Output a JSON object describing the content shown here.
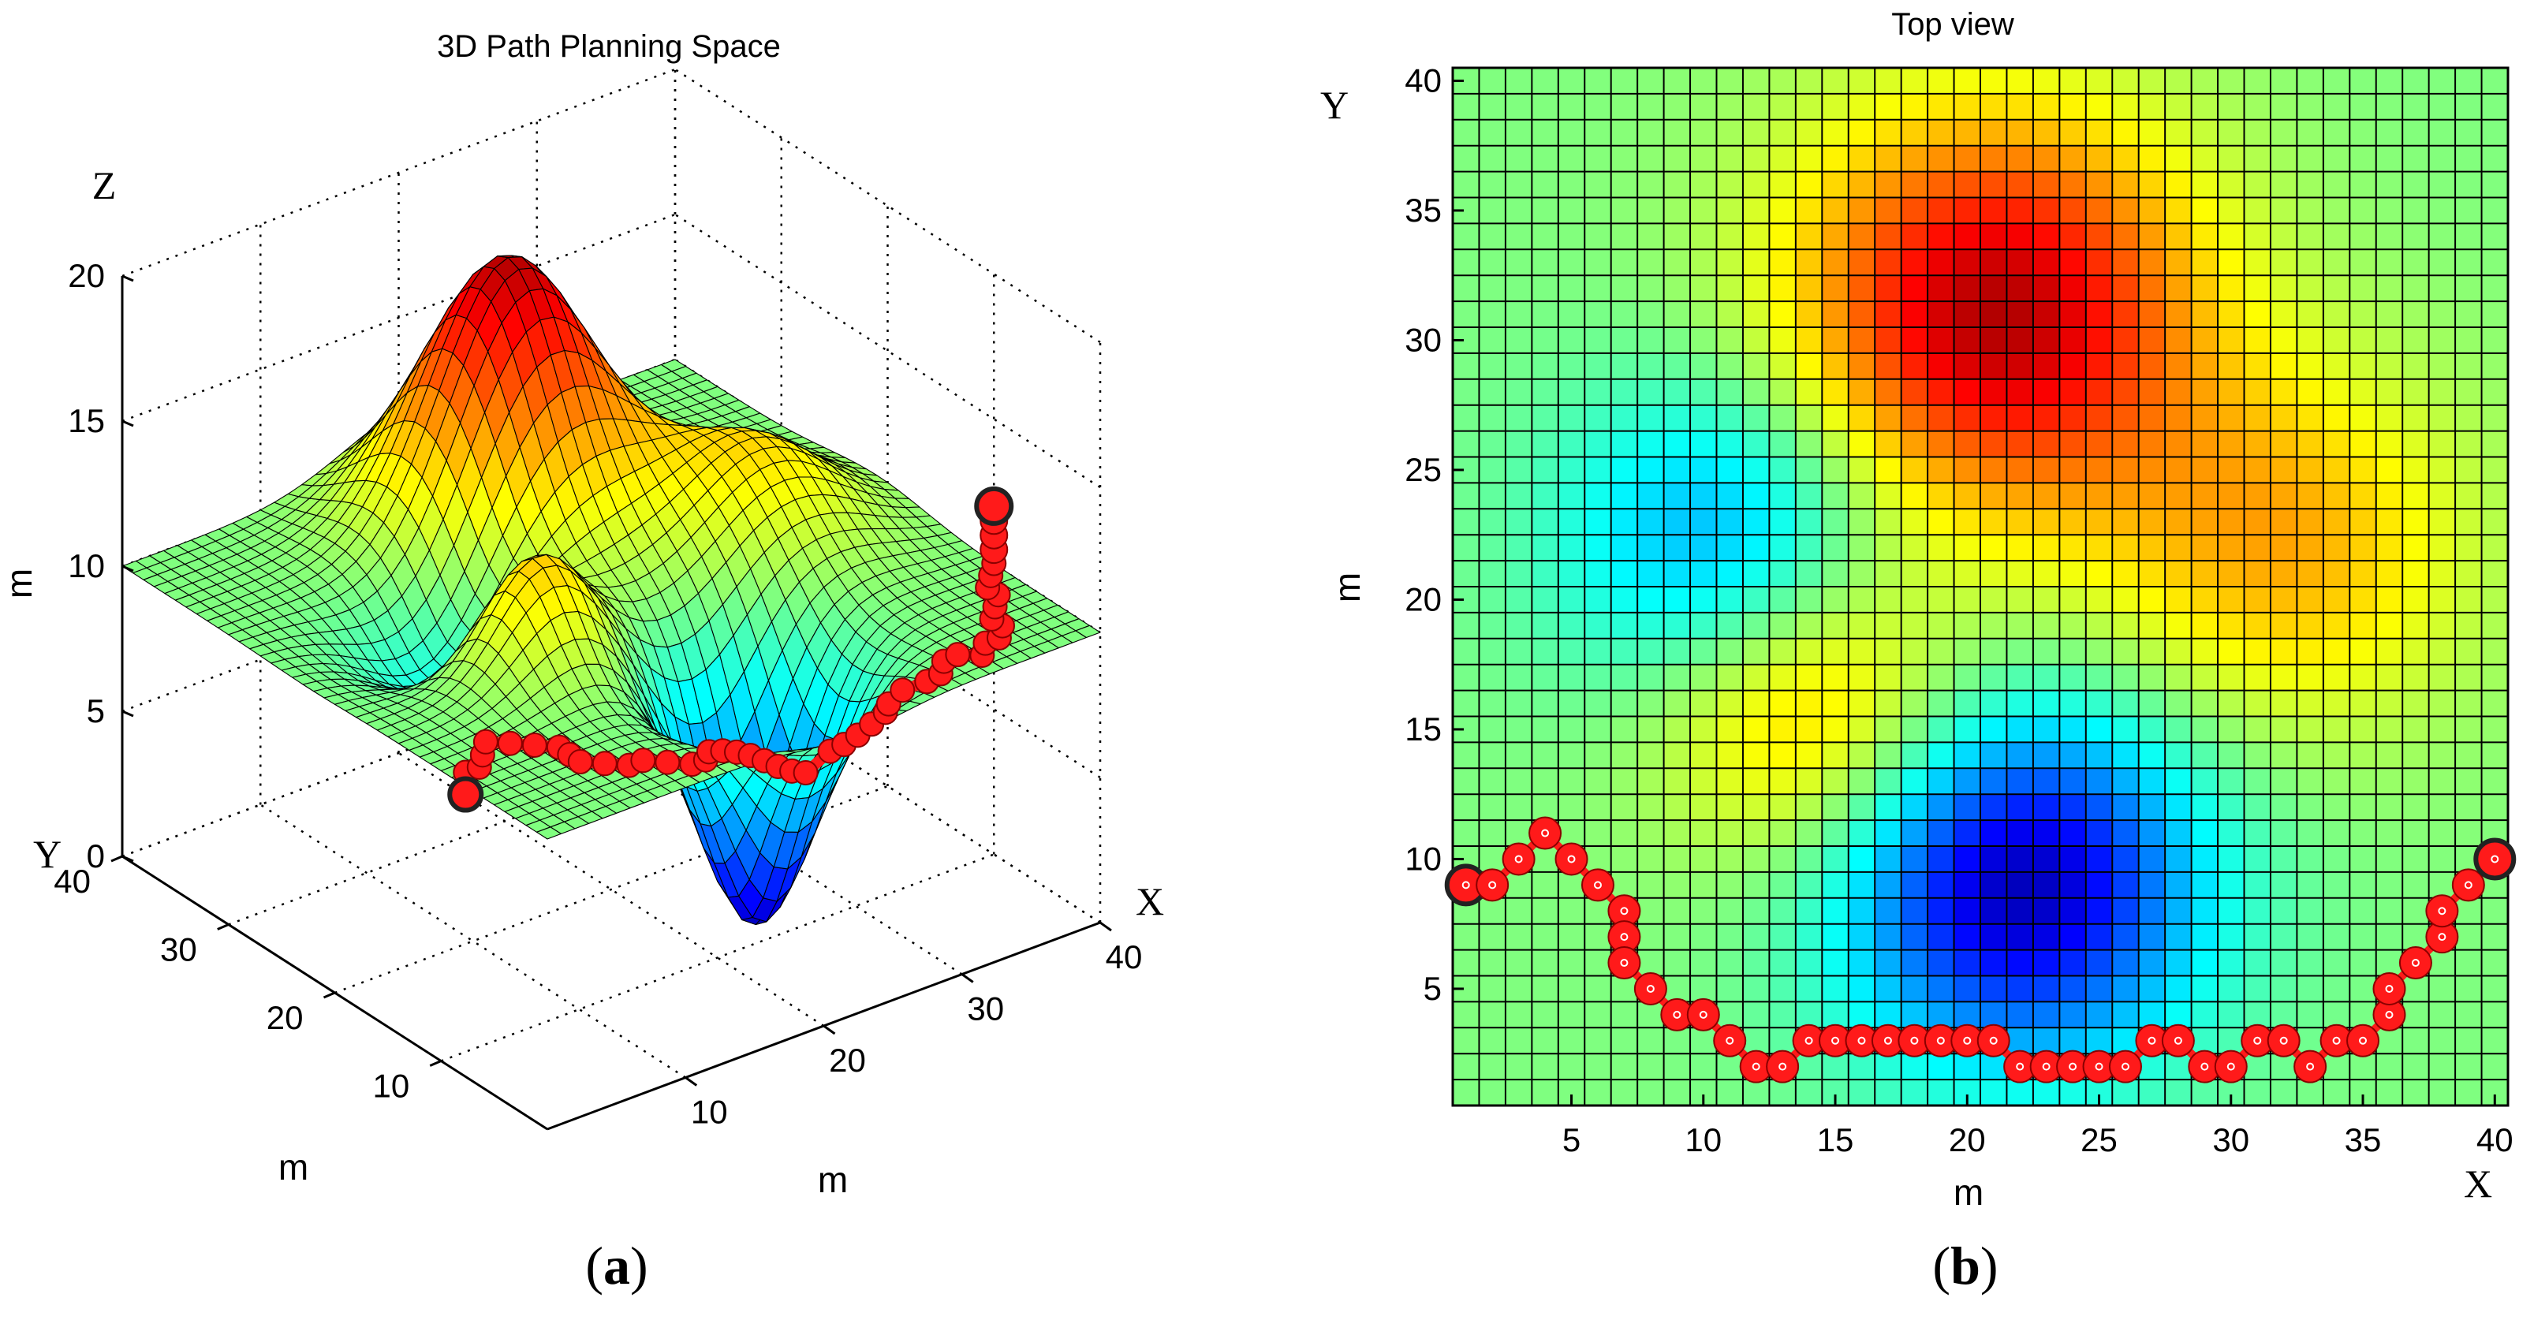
{
  "chart_data": [
    {
      "id": "a",
      "type": "surface3d",
      "title": "3D Path Planning Space",
      "panel_label": "a",
      "axis_letters": {
        "x": "X",
        "y": "Y",
        "z": "Z"
      },
      "unit_labels": {
        "x": "m",
        "y": "m",
        "z": "m"
      },
      "xlim": [
        0,
        40
      ],
      "ylim": [
        0,
        40
      ],
      "zlim": [
        0,
        20
      ],
      "x_ticks": [
        "10",
        "20",
        "30",
        "40"
      ],
      "y_ticks": [
        "10",
        "20",
        "30",
        "40"
      ],
      "z_ticks": [
        "0",
        "5",
        "10",
        "15",
        "20"
      ],
      "grid": true,
      "base_level": 10,
      "surface_features": [
        {
          "label": "peak",
          "x": 21,
          "y": 31,
          "z": 19
        },
        {
          "label": "peak",
          "x": 12,
          "y": 18,
          "z": 15
        },
        {
          "label": "peak",
          "x": 31,
          "y": 21,
          "z": 13
        },
        {
          "label": "valley",
          "x": 11,
          "y": 22,
          "z": 6
        },
        {
          "label": "valley",
          "x": 22,
          "y": 9,
          "z": 1
        }
      ],
      "colormap": "jet",
      "path_color": "#ff1a1a",
      "path_start": {
        "x": 1,
        "y": 9
      },
      "path_end": {
        "x": 40,
        "y": 10
      }
    },
    {
      "id": "b",
      "type": "heatmap",
      "title": "Top view",
      "panel_label": "b",
      "xlabel": "m",
      "ylabel": "m",
      "axis_letters": {
        "x": "X",
        "y": "Y"
      },
      "xlim": [
        1,
        40
      ],
      "ylim": [
        1,
        40
      ],
      "x_ticks": [
        "5",
        "10",
        "15",
        "20",
        "25",
        "30",
        "35",
        "40"
      ],
      "y_ticks": [
        "5",
        "10",
        "15",
        "20",
        "25",
        "30",
        "35",
        "40"
      ],
      "grid": true,
      "colormap": "jet",
      "color_range": [
        0,
        20
      ],
      "path": {
        "color": "#ff1a1a",
        "x": [
          1,
          2,
          3,
          4,
          5,
          6,
          7,
          7,
          7,
          8,
          9,
          10,
          11,
          12,
          13,
          14,
          15,
          16,
          17,
          18,
          19,
          20,
          21,
          22,
          23,
          24,
          25,
          26,
          27,
          28,
          29,
          30,
          31,
          32,
          33,
          34,
          35,
          36,
          36,
          37,
          38,
          38,
          39,
          40
        ],
        "y": [
          9,
          9,
          10,
          11,
          10,
          9,
          8,
          7,
          6,
          5,
          4,
          4,
          3,
          2,
          2,
          3,
          3,
          3,
          3,
          3,
          3,
          3,
          3,
          2,
          2,
          2,
          2,
          2,
          3,
          3,
          2,
          2,
          3,
          3,
          2,
          3,
          3,
          4,
          5,
          6,
          7,
          8,
          9,
          10
        ]
      }
    }
  ],
  "colors": {
    "grid_line": "#000000",
    "path": "#ff1a1a",
    "path_edge": "#8a0000"
  }
}
